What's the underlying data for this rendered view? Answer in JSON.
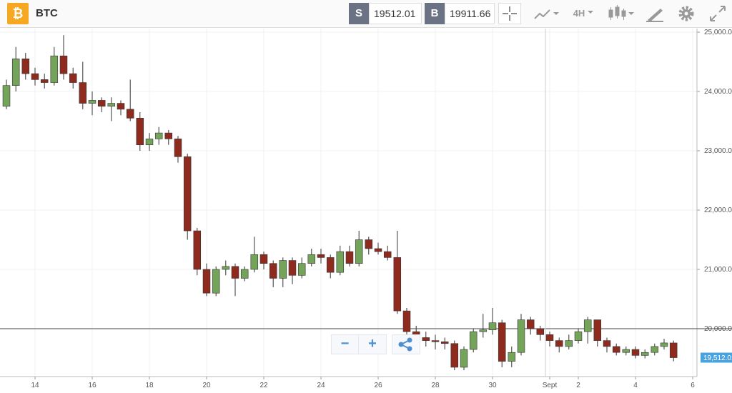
{
  "toolbar": {
    "symbol_icon": "₿",
    "symbol": "BTC",
    "sell_label": "S",
    "sell_price": "19512.01",
    "buy_label": "B",
    "buy_price": "19911.66",
    "interval": "4H"
  },
  "controls": {
    "zoom_out": "−",
    "zoom_in": "+"
  },
  "chart_data": {
    "type": "candlestick",
    "x": [
      13,
      13.33,
      13.67,
      14,
      14.33,
      14.67,
      15,
      15.33,
      15.67,
      16,
      16.33,
      16.67,
      17,
      17.33,
      17.67,
      18,
      18.33,
      18.67,
      19,
      19.33,
      19.67,
      20,
      20.33,
      20.67,
      21,
      21.33,
      21.67,
      22,
      22.33,
      22.67,
      23,
      23.33,
      23.67,
      24,
      24.33,
      24.67,
      25,
      25.33,
      25.67,
      26,
      26.33,
      26.67,
      27,
      27.33,
      27.67,
      28,
      28.33,
      28.67,
      29,
      29.33,
      29.67,
      30,
      30.33,
      30.67,
      31,
      31.33,
      31.67,
      32,
      32.33,
      32.67,
      33,
      33.33,
      33.67,
      34,
      34.33,
      34.67,
      35,
      35.33,
      35.67,
      36,
      36.33
    ],
    "open": [
      23750,
      24100,
      24550,
      24300,
      24200,
      24150,
      24600,
      24300,
      24150,
      23800,
      23850,
      23750,
      23800,
      23700,
      23550,
      23100,
      23200,
      23300,
      23200,
      22900,
      21650,
      21000,
      20600,
      21000,
      21050,
      20850,
      21000,
      21250,
      21100,
      20850,
      21150,
      20900,
      21100,
      21250,
      21200,
      20950,
      21300,
      21100,
      21500,
      21350,
      21300,
      21200,
      20300,
      19950,
      19850,
      19800,
      19780,
      19750,
      19350,
      19650,
      19950,
      19980,
      20100,
      19450,
      19600,
      20150,
      20000,
      19900,
      19800,
      19700,
      19800,
      19950,
      20150,
      19800,
      19700,
      19600,
      19650,
      19550,
      19600,
      19700,
      19760
    ],
    "close": [
      24100,
      24550,
      24300,
      24200,
      24150,
      24600,
      24300,
      24150,
      23800,
      23850,
      23750,
      23800,
      23700,
      23550,
      23100,
      23200,
      23300,
      23200,
      22900,
      21650,
      21000,
      20600,
      21000,
      21050,
      20850,
      21000,
      21250,
      21100,
      20850,
      21150,
      20900,
      21100,
      21250,
      21200,
      20950,
      21300,
      21100,
      21500,
      21350,
      21300,
      21200,
      20300,
      19950,
      19850,
      19800,
      19780,
      19750,
      19350,
      19650,
      19950,
      19980,
      20100,
      19450,
      19600,
      20150,
      20000,
      19900,
      19800,
      19700,
      19800,
      19950,
      20150,
      19800,
      19700,
      19600,
      19650,
      19550,
      19600,
      19700,
      19760,
      19512
    ],
    "high": [
      24200,
      24750,
      24650,
      24400,
      24300,
      24750,
      24950,
      24400,
      24500,
      24000,
      23900,
      23900,
      23850,
      24200,
      23650,
      23300,
      23400,
      23350,
      23250,
      22950,
      21700,
      21100,
      21050,
      21150,
      21100,
      21050,
      21550,
      21300,
      21150,
      21200,
      21200,
      21200,
      21350,
      21350,
      21250,
      21400,
      21400,
      21650,
      21550,
      21450,
      21400,
      21650,
      20350,
      20050,
      19950,
      19900,
      19850,
      19800,
      19700,
      20000,
      20250,
      20350,
      20150,
      19700,
      20250,
      20200,
      20050,
      19950,
      19850,
      19900,
      20000,
      20200,
      20150,
      19850,
      19750,
      19700,
      19700,
      19650,
      19750,
      19830,
      19800
    ],
    "low": [
      23700,
      24000,
      24200,
      24100,
      24050,
      24100,
      24200,
      24050,
      23700,
      23600,
      23650,
      23500,
      23600,
      23500,
      23000,
      23000,
      23100,
      23100,
      22800,
      21500,
      20900,
      20550,
      20550,
      20900,
      20550,
      20800,
      20950,
      21000,
      20700,
      20700,
      20750,
      20850,
      21050,
      21100,
      20850,
      20900,
      21050,
      21050,
      21250,
      21250,
      21150,
      20250,
      19800,
      19700,
      19700,
      19650,
      19650,
      19300,
      19300,
      19600,
      19850,
      19900,
      19350,
      19350,
      19550,
      19900,
      19800,
      19700,
      19600,
      19650,
      19750,
      19750,
      19700,
      19600,
      19550,
      19550,
      19500,
      19500,
      19550,
      19650,
      19450
    ],
    "up_color": "#74a35a",
    "down_color": "#8e2b1e",
    "xlim": [
      12.775,
      37.15
    ],
    "ylim": [
      19193,
      25060
    ],
    "xticks": [
      14,
      16,
      18,
      20,
      22,
      24,
      26,
      28,
      30,
      {
        "value": 32,
        "label": "Sept"
      },
      {
        "value": 33,
        "label": "2"
      },
      {
        "value": 35,
        "label": "4"
      },
      {
        "value": 37,
        "label": "6"
      }
    ],
    "yticks": [
      {
        "value": 20000,
        "label": "20,000.00"
      },
      {
        "value": 21000,
        "label": "21,000.00"
      },
      {
        "value": 22000,
        "label": "22,000.00"
      },
      {
        "value": 23000,
        "label": "23,000.00"
      },
      {
        "value": 24000,
        "label": "24,000.00"
      },
      {
        "value": 25000,
        "label": "25,000.00"
      }
    ],
    "grid": true,
    "last_price": {
      "value": 19512.01,
      "label": "19,512.01"
    }
  }
}
